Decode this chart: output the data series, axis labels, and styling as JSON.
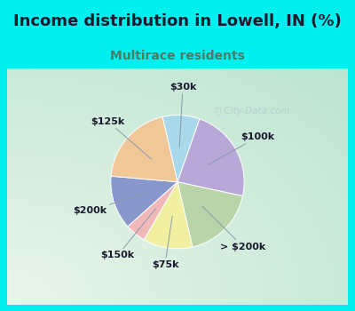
{
  "title": "Income distribution in Lowell, IN (%)",
  "subtitle": "Multirace residents",
  "title_color": "#1a1a2e",
  "subtitle_color": "#4a7c6a",
  "watermark": "ⓘ City-Data.com",
  "slices": [
    {
      "label": "$30k",
      "value": 9,
      "color": "#a8d8ea"
    },
    {
      "label": "$100k",
      "value": 23,
      "color": "#b8a8d8"
    },
    {
      "label": "> $200k",
      "value": 18,
      "color": "#b8d4a8"
    },
    {
      "label": "$75k",
      "value": 12,
      "color": "#f0f0a0"
    },
    {
      "label": "$150k",
      "value": 5,
      "color": "#f0b8b8"
    },
    {
      "label": "$200k",
      "value": 13,
      "color": "#8898cc"
    },
    {
      "label": "$125k",
      "value": 20,
      "color": "#f0c898"
    }
  ],
  "cyan_bg": "#00f0f0",
  "chart_bg_outer": "#c8e8d4",
  "chart_bg_inner": "#e8f4f0",
  "label_fontsize": 8.0,
  "title_fontsize": 13,
  "subtitle_fontsize": 10,
  "startangle": 103,
  "label_color": "#1a1a2e"
}
